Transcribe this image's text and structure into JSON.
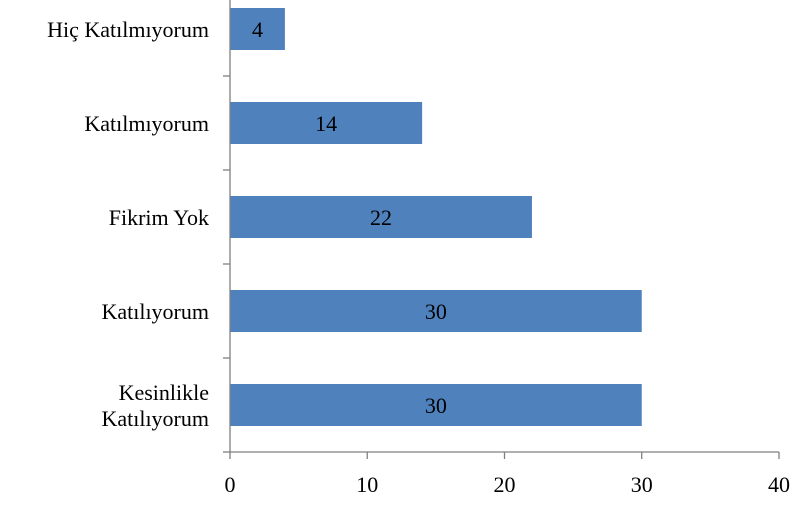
{
  "chart_data": {
    "type": "bar",
    "orientation": "horizontal",
    "categories": [
      [
        "Hiç Katılmıyorum"
      ],
      [
        "Katılmıyorum"
      ],
      [
        "Fikrim Yok"
      ],
      [
        "Katılıyorum"
      ],
      [
        "Kesinlikle",
        "Katılıyorum"
      ]
    ],
    "values": [
      4,
      14,
      22,
      30,
      30
    ],
    "data_labels": [
      "4",
      "14",
      "22",
      "30",
      "30"
    ],
    "xticks": [
      "0",
      "10",
      "20",
      "30",
      "40"
    ],
    "xlim": [
      0,
      40
    ],
    "title": "",
    "xlabel": "",
    "ylabel": "",
    "grid": false,
    "legend": "none",
    "bar_color": "#4f81bd"
  }
}
